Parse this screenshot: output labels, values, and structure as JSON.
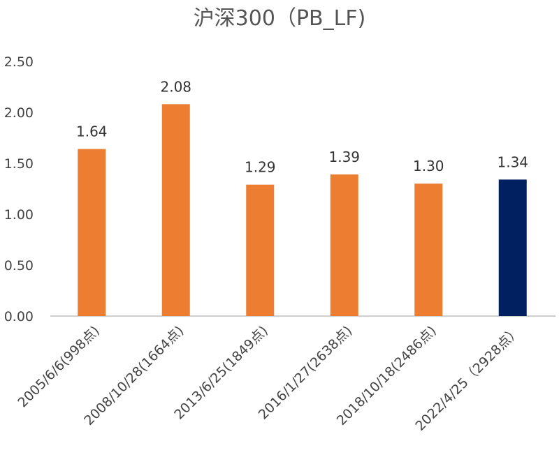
{
  "chart_data": {
    "type": "bar",
    "title": "沪深300（PB_LF)",
    "xlabel": "",
    "ylabel": "",
    "ylim": [
      0,
      2.5
    ],
    "yticks": [
      "0.00",
      "0.50",
      "1.00",
      "1.50",
      "2.00",
      "2.50"
    ],
    "grid": false,
    "categories": [
      "2005/6/6(998点)",
      "2008/10/28(1664点)",
      "2013/6/25(1849点)",
      "2016/1/27(2638点)",
      "2018/10/18(2486点)",
      "2022/4/25（2928点）"
    ],
    "values": [
      1.64,
      2.08,
      1.29,
      1.39,
      1.3,
      1.34
    ],
    "data_labels": [
      "1.64",
      "2.08",
      "1.29",
      "1.39",
      "1.30",
      "1.34"
    ],
    "bar_colors": [
      "#ed7d31",
      "#ed7d31",
      "#ed7d31",
      "#ed7d31",
      "#ed7d31",
      "#002060"
    ]
  }
}
